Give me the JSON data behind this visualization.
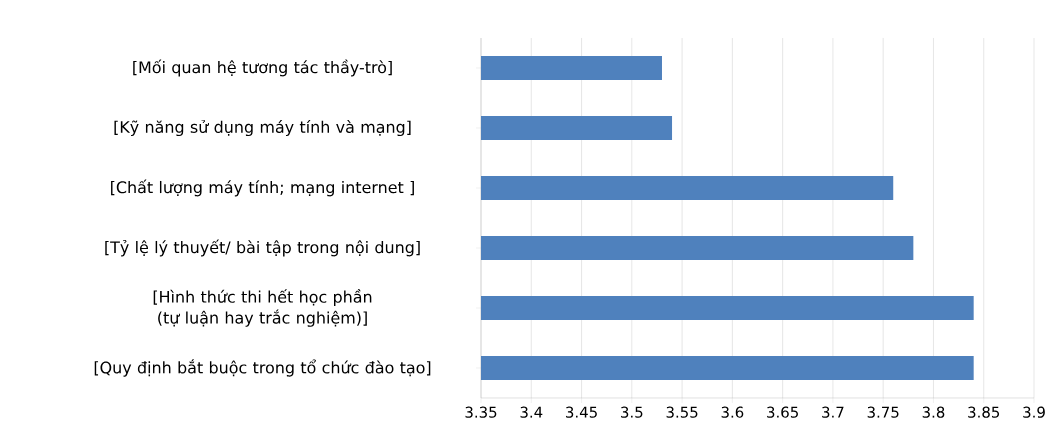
{
  "chart_data": {
    "type": "bar",
    "orientation": "horizontal",
    "categories": [
      "[Mối quan hệ tương tác thầy-trò]",
      "[Kỹ năng sử dụng máy tính và mạng]",
      "[Chất lượng máy tính; mạng internet ]",
      "[Tỷ lệ lý thuyết/ bài tập trong nội dung]",
      "[Hình thức thi hết học phần (tự luận hay trắc nghiệm)]",
      "[Quy định bắt buộc trong tổ chức đào tạo]"
    ],
    "values": [
      3.53,
      3.54,
      3.76,
      3.78,
      3.84,
      3.84
    ],
    "color": "#4f81bd",
    "xlim": [
      3.35,
      3.9
    ],
    "xticks": [
      3.35,
      3.4,
      3.45,
      3.5,
      3.55,
      3.6,
      3.65,
      3.7,
      3.75,
      3.8,
      3.85,
      3.9
    ],
    "grid": "x"
  }
}
